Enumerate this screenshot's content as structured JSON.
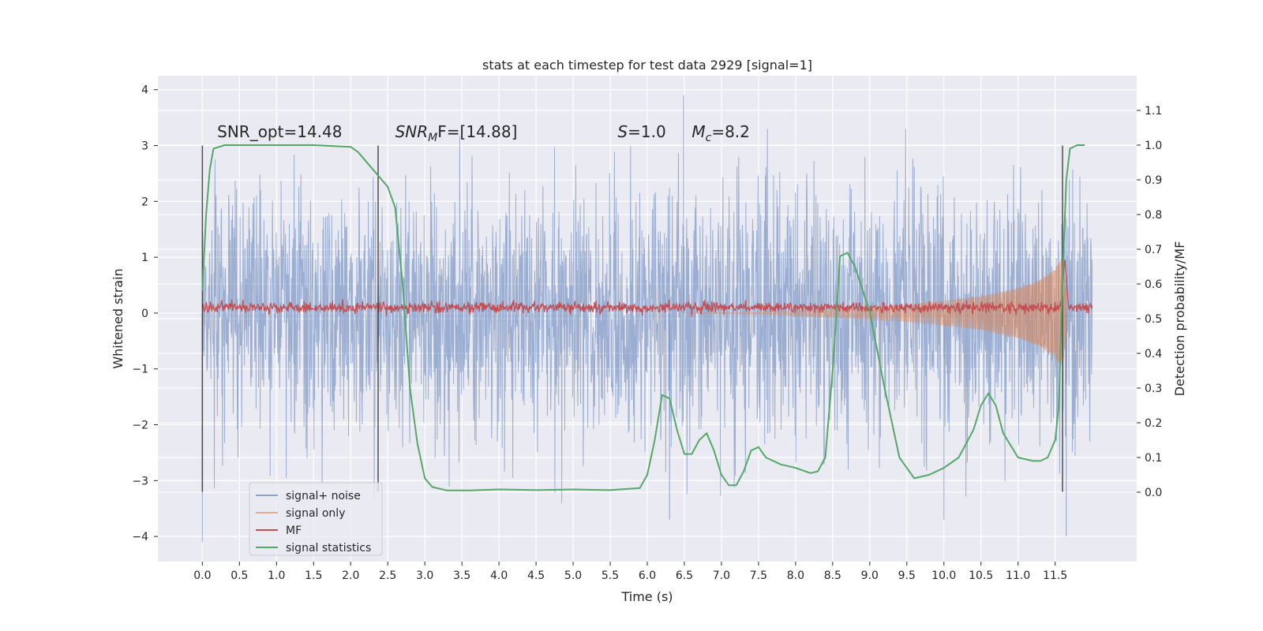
{
  "chart_data": {
    "type": "line",
    "title": "stats at each timestep for test data 2929 [signal=1]",
    "xlabel": "Time (s)",
    "ylabel": "Whitened strain",
    "y2label": "Detection probability/MF",
    "xlim": [
      -0.6,
      12.6
    ],
    "ylim": [
      -4.45,
      4.25
    ],
    "y2lim": [
      -0.2,
      1.2
    ],
    "x_ticks": [
      0.0,
      0.5,
      1.0,
      1.5,
      2.0,
      2.5,
      3.0,
      3.5,
      4.0,
      4.5,
      5.0,
      5.5,
      6.0,
      6.5,
      7.0,
      7.5,
      8.0,
      8.5,
      9.0,
      9.5,
      10.0,
      10.5,
      11.0,
      11.5
    ],
    "x_tick_labels": [
      "0.0",
      "0.5",
      "1.0",
      "1.5",
      "2.0",
      "2.5",
      "3.0",
      "3.5",
      "4.0",
      "4.5",
      "5.0",
      "5.5",
      "6.0",
      "6.5",
      "7.0",
      "7.5",
      "8.0",
      "8.5",
      "9.0",
      "9.5",
      "10.0",
      "10.5",
      "11.0",
      "11.5"
    ],
    "y_ticks": [
      -4,
      -3,
      -2,
      -1,
      0,
      1,
      2,
      3,
      4
    ],
    "y_tick_labels": [
      "−4",
      "−3",
      "−2",
      "−1",
      "0",
      "1",
      "2",
      "3",
      "4"
    ],
    "y2_ticks": [
      0.0,
      0.1,
      0.2,
      0.3,
      0.4,
      0.5,
      0.6,
      0.7,
      0.8,
      0.9,
      1.0,
      1.1
    ],
    "y2_tick_labels": [
      "0.0",
      "0.1",
      "0.2",
      "0.3",
      "0.4",
      "0.5",
      "0.6",
      "0.7",
      "0.8",
      "0.9",
      "1.0",
      "1.1"
    ],
    "grid": true,
    "legend_position": "lower-left",
    "annotations": [
      {
        "text": "SNR_opt=14.48",
        "x": 0.2,
        "y": 3.15
      },
      {
        "text": "SNR",
        "sub": "M",
        "rest": "F=[14.88]",
        "x": 2.6,
        "y": 3.15,
        "italic": true
      },
      {
        "text": "S",
        "rest": "=1.0",
        "x": 5.6,
        "y": 3.15,
        "italic": true
      },
      {
        "text": "M",
        "sub": "c",
        "rest": "=8.2",
        "x": 6.6,
        "y": 3.15,
        "italic": true
      }
    ],
    "vlines": [
      {
        "x": 0.0,
        "ymin": -3.2,
        "ymax": 3.0
      },
      {
        "x": 2.37,
        "ymin": -3.2,
        "ymax": 3.0
      },
      {
        "x": 11.6,
        "ymin": -3.2,
        "ymax": 3.0
      }
    ],
    "series": [
      {
        "name": "signal+ noise",
        "color": "#4c72b0",
        "axis": "left",
        "kind": "noise",
        "x_range": [
          0.0,
          12.0
        ],
        "typical_abs_max": 2.5,
        "extreme_min": -4.1,
        "extreme_max": 3.9
      },
      {
        "name": "signal only",
        "color": "#dd8452",
        "axis": "left",
        "kind": "chirp",
        "envelope": [
          {
            "x": 7.5,
            "amp": 0.02
          },
          {
            "x": 8.5,
            "amp": 0.08
          },
          {
            "x": 9.5,
            "amp": 0.15
          },
          {
            "x": 10.5,
            "amp": 0.3
          },
          {
            "x": 11.0,
            "amp": 0.45
          },
          {
            "x": 11.3,
            "amp": 0.6
          },
          {
            "x": 11.5,
            "amp": 0.8
          },
          {
            "x": 11.6,
            "amp": 1.0
          },
          {
            "x": 11.65,
            "amp": 0.4
          }
        ]
      },
      {
        "name": "MF",
        "color": "#c44e52",
        "axis": "left",
        "kind": "mf",
        "base": 0.1,
        "noise_amp": 0.08,
        "peak": {
          "x": 11.63,
          "y": 1.0
        }
      },
      {
        "name": "signal statistics",
        "color": "#55a868",
        "axis": "right",
        "kind": "line",
        "x": [
          0.0,
          0.05,
          0.1,
          0.15,
          0.3,
          0.6,
          1.0,
          1.5,
          2.0,
          2.1,
          2.3,
          2.5,
          2.6,
          2.7,
          2.8,
          2.9,
          3.0,
          3.1,
          3.3,
          3.6,
          4.0,
          4.5,
          5.0,
          5.5,
          5.9,
          6.0,
          6.1,
          6.2,
          6.3,
          6.4,
          6.5,
          6.6,
          6.7,
          6.8,
          6.9,
          7.0,
          7.1,
          7.2,
          7.3,
          7.4,
          7.5,
          7.6,
          7.8,
          8.0,
          8.2,
          8.3,
          8.4,
          8.5,
          8.6,
          8.7,
          8.8,
          9.0,
          9.2,
          9.4,
          9.6,
          9.8,
          10.0,
          10.2,
          10.4,
          10.5,
          10.6,
          10.7,
          10.8,
          11.0,
          11.2,
          11.3,
          11.4,
          11.5,
          11.55,
          11.6,
          11.65,
          11.7,
          11.8,
          11.9
        ],
        "y": [
          0.58,
          0.8,
          0.93,
          0.99,
          1.0,
          1.0,
          1.0,
          1.0,
          0.995,
          0.98,
          0.93,
          0.88,
          0.82,
          0.6,
          0.3,
          0.14,
          0.04,
          0.015,
          0.005,
          0.005,
          0.008,
          0.006,
          0.008,
          0.006,
          0.012,
          0.05,
          0.15,
          0.28,
          0.27,
          0.18,
          0.11,
          0.11,
          0.15,
          0.17,
          0.12,
          0.05,
          0.02,
          0.02,
          0.06,
          0.12,
          0.13,
          0.1,
          0.08,
          0.07,
          0.055,
          0.06,
          0.1,
          0.35,
          0.68,
          0.69,
          0.65,
          0.52,
          0.3,
          0.1,
          0.04,
          0.05,
          0.07,
          0.1,
          0.18,
          0.25,
          0.285,
          0.25,
          0.17,
          0.1,
          0.09,
          0.09,
          0.1,
          0.15,
          0.25,
          0.62,
          0.9,
          0.99,
          1.0,
          1.0
        ]
      }
    ]
  }
}
